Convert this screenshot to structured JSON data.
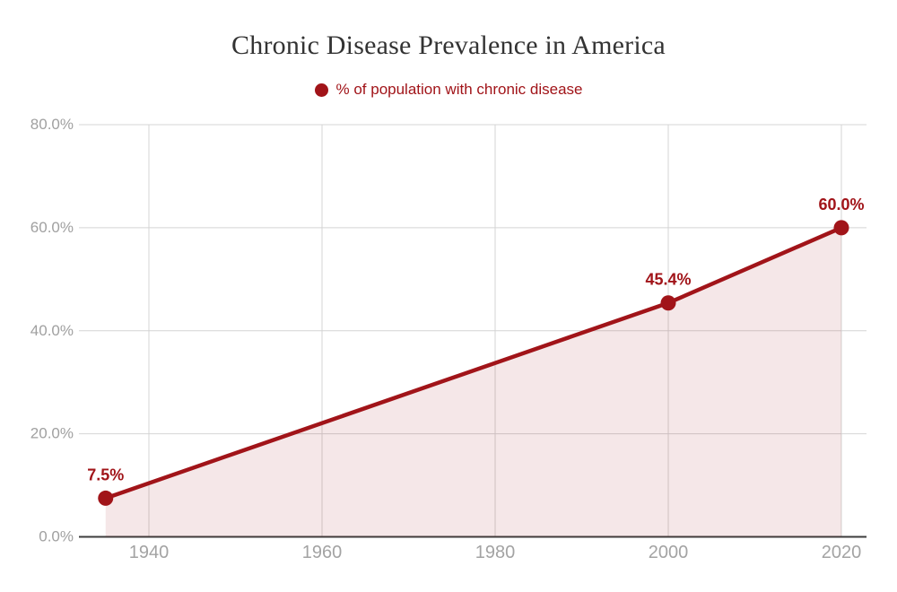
{
  "chart_data": {
    "type": "line",
    "title": "Chronic Disease Prevalence in America",
    "legend": {
      "label": "% of population with chronic disease",
      "position": "top",
      "marker": "circle-icon"
    },
    "series": [
      {
        "name": "% of population with chronic disease",
        "points": [
          {
            "year": 1935,
            "value": 7.5,
            "label": "7.5%"
          },
          {
            "year": 2000,
            "value": 45.4,
            "label": "45.4%"
          },
          {
            "year": 2020,
            "value": 60.0,
            "label": "60.0%"
          }
        ]
      }
    ],
    "x_ticks": [
      {
        "value": 1940,
        "label": "1940"
      },
      {
        "value": 1960,
        "label": "1960"
      },
      {
        "value": 1980,
        "label": "1980"
      },
      {
        "value": 2000,
        "label": "2000"
      },
      {
        "value": 2020,
        "label": "2020"
      }
    ],
    "y_ticks": [
      {
        "value": 0,
        "label": "0.0%"
      },
      {
        "value": 20,
        "label": "20.0%"
      },
      {
        "value": 40,
        "label": "40.0%"
      },
      {
        "value": 60,
        "label": "60.0%"
      },
      {
        "value": 80,
        "label": "80.0%"
      }
    ],
    "ylim": [
      0,
      80
    ],
    "grid": true,
    "area_fill": true,
    "colors": {
      "line": "#A11419",
      "fill": "rgba(161,20,25,0.10)",
      "title": "#333333",
      "tick_label": "#A0A0A0",
      "gridline": "#D4D4D4",
      "axis_line": "#3C3C3C",
      "background": "#FFFFFF"
    }
  }
}
